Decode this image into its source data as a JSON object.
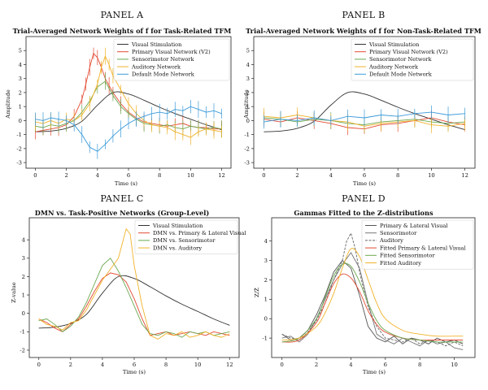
{
  "figure": {
    "panels": [
      {
        "label": "PANEL A",
        "title": "Trial-Averaged Network Weights of f for Task-Related TFM"
      },
      {
        "label": "PANEL B",
        "title": "Trial-Averaged Network Weights of f for Non-Task-Related TFM"
      },
      {
        "label": "PANEL C",
        "title": "DMN vs. Task-Positive Networks (Group-Level)"
      },
      {
        "label": "PANEL D",
        "title": "Gammas Fitted to the Z-distributions"
      }
    ]
  },
  "chart_data": [
    {
      "type": "line",
      "panel": "PANEL A",
      "title": "Trial-Averaged Network Weights of f for Task-Related TFM",
      "xlabel": "Time (s)",
      "ylabel": "Amplitude",
      "xlim": [
        -0.6,
        12.6
      ],
      "ylim": [
        -3.4,
        6.0
      ],
      "xticks": [
        0,
        2,
        4,
        6,
        8,
        10,
        12
      ],
      "yticks": [
        -3,
        -2,
        -1,
        0,
        1,
        2,
        3,
        4,
        5
      ],
      "legend_position": "top-right",
      "series": [
        {
          "name": "Visual Stimulation",
          "color": "#333333",
          "style": "smooth",
          "x": [
            0,
            1,
            2,
            3,
            4,
            5,
            6,
            7,
            8,
            9,
            10,
            11,
            12
          ],
          "values": [
            -0.8,
            -0.75,
            -0.55,
            -0.05,
            1.1,
            2.0,
            1.9,
            1.45,
            0.95,
            0.5,
            0.1,
            -0.3,
            -0.65
          ]
        },
        {
          "name": "Primary Visual Network (V2)",
          "color": "#e34a33",
          "style": "errorbar",
          "x": [
            0,
            0.5,
            1,
            1.5,
            2,
            2.5,
            3,
            3.25,
            3.5,
            3.75,
            4,
            4.25,
            4.5,
            4.75,
            5,
            5.5,
            6,
            6.5,
            7,
            7.5,
            8,
            8.5,
            9,
            9.5,
            10,
            10.5,
            11,
            11.5,
            12
          ],
          "values": [
            -0.8,
            -0.7,
            -0.6,
            -0.5,
            -0.3,
            0.3,
            1.5,
            2.6,
            3.8,
            4.8,
            4.5,
            3.8,
            3.0,
            2.5,
            2.0,
            1.2,
            0.6,
            0.2,
            -0.1,
            -0.2,
            -0.3,
            -0.4,
            -0.3,
            -0.2,
            -0.4,
            -0.5,
            -0.5,
            -0.6,
            -0.6
          ]
        },
        {
          "name": "Sensorimotor Network",
          "color": "#6aa84f",
          "style": "errorbar",
          "x": [
            0,
            0.5,
            1,
            1.5,
            2,
            2.5,
            3,
            3.5,
            4,
            4.5,
            5,
            5.5,
            6,
            6.5,
            7,
            7.5,
            8,
            8.5,
            9,
            9.5,
            10,
            10.5,
            11,
            11.5,
            12
          ],
          "values": [
            -0.4,
            -0.5,
            -0.3,
            -0.4,
            -0.2,
            0.0,
            0.6,
            1.4,
            2.4,
            2.8,
            1.8,
            1.0,
            0.5,
            0.1,
            -0.2,
            -0.3,
            -0.4,
            -0.3,
            -0.5,
            -0.6,
            -0.4,
            -0.5,
            -0.6,
            -0.5,
            -0.6
          ]
        },
        {
          "name": "Auditory Network",
          "color": "#f0b32b",
          "style": "errorbar",
          "x": [
            0,
            0.5,
            1,
            1.5,
            2,
            2.5,
            3,
            3.5,
            4,
            4.25,
            4.5,
            4.75,
            5,
            5.5,
            6,
            6.5,
            7,
            7.5,
            8,
            8.5,
            9,
            9.5,
            10,
            10.5,
            11,
            11.5,
            12
          ],
          "values": [
            -0.1,
            -0.2,
            0.0,
            -0.2,
            0.1,
            0.0,
            0.4,
            1.2,
            2.6,
            3.8,
            4.6,
            4.0,
            3.2,
            2.2,
            1.2,
            0.5,
            0.0,
            -0.3,
            -0.4,
            -0.5,
            -0.8,
            -1.0,
            -1.2,
            -0.8,
            -0.6,
            -0.7,
            -0.8
          ]
        },
        {
          "name": "Default Mode Network",
          "color": "#3a9ad9",
          "style": "errorbar",
          "x": [
            0,
            0.5,
            1,
            1.5,
            2,
            2.5,
            3,
            3.5,
            4,
            4.5,
            5,
            5.5,
            6,
            6.5,
            7,
            7.5,
            8,
            8.5,
            9,
            9.5,
            10,
            10.5,
            11,
            11.5,
            12
          ],
          "values": [
            0.1,
            0.0,
            0.2,
            0.1,
            0.0,
            -0.3,
            -1.0,
            -1.9,
            -2.2,
            -1.7,
            -1.1,
            -0.6,
            -0.2,
            0.1,
            0.3,
            0.5,
            0.6,
            0.5,
            0.8,
            0.7,
            1.0,
            0.8,
            0.6,
            0.7,
            0.5
          ]
        }
      ]
    },
    {
      "type": "line",
      "panel": "PANEL B",
      "title": "Trial-Averaged Network Weights of f for Non-Task-Related TFM",
      "xlabel": "Time (s)",
      "ylabel": "Amplitude",
      "xlim": [
        -0.6,
        12.6
      ],
      "ylim": [
        -3.4,
        6.0
      ],
      "xticks": [
        0,
        2,
        4,
        6,
        8,
        10,
        12
      ],
      "yticks": [
        -3,
        -2,
        -1,
        0,
        1,
        2,
        3,
        4,
        5
      ],
      "legend_position": "top-right",
      "series": [
        {
          "name": "Visual Stimulation",
          "color": "#333333",
          "style": "smooth",
          "x": [
            0,
            1,
            2,
            3,
            4,
            5,
            6,
            7,
            8,
            9,
            10,
            11,
            12
          ],
          "values": [
            -0.8,
            -0.75,
            -0.55,
            -0.05,
            1.1,
            2.0,
            1.9,
            1.45,
            0.95,
            0.5,
            0.1,
            -0.3,
            -0.65
          ]
        },
        {
          "name": "Primary Visual Network (V2)",
          "color": "#e34a33",
          "style": "errorbar",
          "x": [
            0,
            1,
            2,
            3,
            4,
            5,
            6,
            7,
            8,
            9,
            10,
            11,
            12
          ],
          "values": [
            0.1,
            -0.1,
            0.2,
            0.0,
            -0.2,
            -0.5,
            -0.6,
            -0.3,
            -0.2,
            0.0,
            0.2,
            -0.1,
            -0.3
          ]
        },
        {
          "name": "Sensorimotor Network",
          "color": "#6aa84f",
          "style": "errorbar",
          "x": [
            0,
            1,
            2,
            3,
            4,
            5,
            6,
            7,
            8,
            9,
            10,
            11,
            12
          ],
          "values": [
            0.2,
            0.1,
            -0.1,
            0.1,
            0.0,
            -0.2,
            -0.3,
            -0.1,
            0.0,
            0.1,
            -0.1,
            -0.2,
            -0.1
          ]
        },
        {
          "name": "Auditory Network",
          "color": "#f0b32b",
          "style": "errorbar",
          "x": [
            0,
            1,
            2,
            3,
            4,
            5,
            6,
            7,
            8,
            9,
            10,
            11,
            12
          ],
          "values": [
            0.3,
            0.2,
            0.4,
            0.2,
            0.0,
            -0.1,
            -0.4,
            -0.2,
            -0.1,
            0.0,
            -0.3,
            -0.4,
            -0.2
          ]
        },
        {
          "name": "Default Mode Network",
          "color": "#3a9ad9",
          "style": "errorbar",
          "x": [
            0,
            1,
            2,
            3,
            4,
            5,
            6,
            7,
            8,
            9,
            10,
            11,
            12
          ],
          "values": [
            -0.1,
            0.1,
            0.0,
            0.2,
            0.0,
            0.3,
            0.2,
            0.4,
            0.3,
            0.5,
            0.6,
            0.4,
            0.5
          ]
        }
      ]
    },
    {
      "type": "line",
      "panel": "PANEL C",
      "title": "DMN vs. Task-Positive Networks (Group-Level)",
      "xlabel": "Time (s)",
      "ylabel": "Z-value",
      "xlim": [
        -0.6,
        12.6
      ],
      "ylim": [
        -2.4,
        5.2
      ],
      "xticks": [
        0,
        2,
        4,
        6,
        8,
        10,
        12
      ],
      "yticks": [
        -2,
        -1,
        0,
        1,
        2,
        3,
        4
      ],
      "legend_position": "top-right",
      "series": [
        {
          "name": "Visual Stimulation",
          "color": "#333333",
          "style": "smooth",
          "x": [
            0,
            1,
            2,
            3,
            4,
            5,
            6,
            7,
            8,
            9,
            10,
            11,
            12
          ],
          "values": [
            -0.8,
            -0.75,
            -0.55,
            -0.05,
            1.1,
            2.0,
            1.9,
            1.45,
            0.95,
            0.5,
            0.1,
            -0.3,
            -0.65
          ]
        },
        {
          "name": "DMN vs. Primary & Lateral Visual",
          "color": "#e34a33",
          "style": "line",
          "x": [
            0,
            0.5,
            1,
            1.5,
            2,
            2.5,
            3,
            3.5,
            4,
            4.5,
            5,
            5.5,
            6,
            6.5,
            7,
            7.5,
            8,
            8.5,
            9,
            9.5,
            10,
            10.5,
            11,
            11.5,
            12
          ],
          "values": [
            -0.3,
            -0.5,
            -0.8,
            -1.0,
            -0.6,
            -0.3,
            0.4,
            1.2,
            1.9,
            2.2,
            2.1,
            1.7,
            0.8,
            -0.3,
            -1.2,
            -1.1,
            -1.0,
            -1.2,
            -1.1,
            -1.0,
            -1.1,
            -1.2,
            -1.0,
            -1.1,
            -1.2
          ]
        },
        {
          "name": "DMN vs. Sensorimotor",
          "color": "#6aa84f",
          "style": "line",
          "x": [
            0,
            0.5,
            1,
            1.5,
            2,
            2.5,
            3,
            3.5,
            4,
            4.5,
            5,
            5.5,
            6,
            6.5,
            7,
            7.5,
            8,
            8.5,
            9,
            9.5,
            10,
            10.5,
            11,
            11.5,
            12
          ],
          "values": [
            -0.4,
            -0.3,
            -0.6,
            -1.0,
            -0.7,
            -0.2,
            0.6,
            1.6,
            2.6,
            3.0,
            2.3,
            1.4,
            0.4,
            -0.6,
            -1.1,
            -1.2,
            -1.0,
            -1.1,
            -1.3,
            -1.0,
            -1.1,
            -1.0,
            -1.2,
            -1.1,
            -1.0
          ]
        },
        {
          "name": "DMN vs. Auditory",
          "color": "#f0b32b",
          "style": "line",
          "x": [
            0,
            0.5,
            1,
            1.5,
            2,
            2.5,
            3,
            3.5,
            4,
            4.5,
            5,
            5.5,
            5.75,
            6,
            6.5,
            7,
            7.5,
            8,
            8.5,
            9,
            9.5,
            10,
            10.5,
            11,
            11.5,
            12
          ],
          "values": [
            -0.3,
            -0.6,
            -0.7,
            -0.9,
            -0.5,
            -0.4,
            0.2,
            1.0,
            1.8,
            2.4,
            3.0,
            4.6,
            4.3,
            2.6,
            0.4,
            -1.2,
            -1.4,
            -1.1,
            -1.2,
            -1.0,
            -1.3,
            -1.2,
            -1.0,
            -1.2,
            -1.3,
            -1.1
          ]
        }
      ]
    },
    {
      "type": "line",
      "panel": "PANEL D",
      "title": "Gammas Fitted to the Z-distributions",
      "xlabel": "Time (s)",
      "ylabel": "Z/Ẑ",
      "xlim": [
        -0.6,
        11.2
      ],
      "ylim": [
        -2.0,
        5.2
      ],
      "xticks": [
        0,
        2,
        4,
        6,
        8,
        10
      ],
      "yticks": [
        -1,
        0,
        1,
        2,
        3,
        4
      ],
      "legend_position": "top-right",
      "series": [
        {
          "name": "Primary & Lateral Visual",
          "color": "#555555",
          "style": "line",
          "x": [
            0,
            0.5,
            1,
            1.5,
            2,
            2.5,
            3,
            3.5,
            4,
            4.5,
            5,
            5.5,
            6,
            6.5,
            7,
            7.5,
            8,
            8.5,
            9,
            9.5,
            10,
            10.5
          ],
          "values": [
            -0.8,
            -1.1,
            -1.0,
            -0.6,
            0.2,
            1.2,
            2.4,
            3.0,
            2.6,
            1.2,
            -0.4,
            -1.0,
            -1.2,
            -0.9,
            -1.3,
            -1.0,
            -1.1,
            -1.3,
            -1.0,
            -1.2,
            -1.1,
            -1.3
          ]
        },
        {
          "name": "Sensorimotor",
          "color": "#777777",
          "style": "line",
          "x": [
            0,
            0.5,
            1,
            1.5,
            2,
            2.5,
            3,
            3.5,
            4,
            4.5,
            5,
            5.5,
            6,
            6.5,
            7,
            7.5,
            8,
            8.5,
            9,
            9.5,
            10,
            10.5
          ],
          "values": [
            -1.0,
            -0.9,
            -1.2,
            -0.8,
            0.0,
            1.0,
            2.0,
            2.8,
            3.4,
            2.6,
            0.8,
            -0.8,
            -1.1,
            -1.3,
            -1.0,
            -1.2,
            -1.4,
            -1.1,
            -1.3,
            -1.2,
            -1.5,
            -1.6
          ]
        },
        {
          "name": "Auditory",
          "color": "#666666",
          "style": "dashed",
          "x": [
            0,
            0.5,
            1,
            1.5,
            2,
            2.5,
            3,
            3.5,
            3.75,
            4,
            4.25,
            4.5,
            5,
            5.5,
            6,
            6.5,
            7,
            7.5,
            8,
            8.5,
            9,
            9.5,
            10,
            10.5
          ],
          "values": [
            -0.8,
            -1.0,
            -1.1,
            -0.7,
            -0.1,
            0.8,
            2.0,
            3.0,
            4.0,
            4.4,
            3.6,
            2.4,
            0.6,
            -0.4,
            -1.0,
            -1.1,
            -1.2,
            -1.0,
            -1.3,
            -1.1,
            -1.2,
            -1.4,
            -1.2,
            -1.4
          ]
        },
        {
          "name": "Fitted Primary & Lateral Visual",
          "color": "#e34a33",
          "style": "smooth",
          "x": [
            0,
            1,
            2,
            2.5,
            3,
            3.5,
            4,
            4.5,
            5,
            5.5,
            6,
            7,
            8,
            9,
            10,
            10.5
          ],
          "values": [
            -1.2,
            -1.1,
            -0.2,
            0.8,
            1.8,
            2.3,
            2.1,
            1.4,
            0.4,
            -0.3,
            -0.7,
            -1.0,
            -1.1,
            -1.1,
            -1.1,
            -1.1
          ]
        },
        {
          "name": "Fitted Sensorimotor",
          "color": "#6aa84f",
          "style": "smooth",
          "x": [
            0,
            1,
            2,
            2.5,
            3,
            3.5,
            4,
            4.5,
            5,
            5.5,
            6,
            7,
            8,
            9,
            10,
            10.5
          ],
          "values": [
            -1.2,
            -1.0,
            0.0,
            1.1,
            2.2,
            2.8,
            2.7,
            1.9,
            0.8,
            -0.1,
            -0.6,
            -1.0,
            -1.1,
            -1.2,
            -1.2,
            -1.2
          ]
        },
        {
          "name": "Fitted Auditory",
          "color": "#f0b32b",
          "style": "smooth",
          "x": [
            0,
            1,
            2,
            2.5,
            3,
            3.5,
            4,
            4.5,
            5,
            5.5,
            6,
            7,
            8,
            9,
            10,
            10.5
          ],
          "values": [
            -1.1,
            -1.0,
            -0.4,
            0.3,
            1.3,
            2.6,
            3.6,
            3.2,
            2.0,
            0.8,
            0.0,
            -0.6,
            -0.8,
            -0.9,
            -0.9,
            -0.9
          ]
        }
      ]
    }
  ]
}
